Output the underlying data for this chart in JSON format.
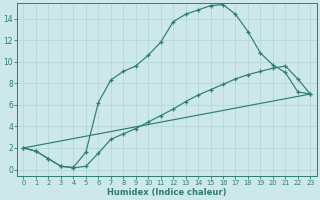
{
  "xlabel": "Humidex (Indice chaleur)",
  "bg_color": "#cce8e8",
  "line_color": "#2e7d6e",
  "grid_color": "#b0d4d4",
  "xlim": [
    -0.5,
    23.5
  ],
  "ylim": [
    -0.6,
    15.4
  ],
  "yticks": [
    0,
    2,
    4,
    6,
    8,
    10,
    12,
    14
  ],
  "xticks": [
    0,
    1,
    2,
    3,
    4,
    5,
    6,
    7,
    8,
    9,
    10,
    11,
    12,
    13,
    14,
    15,
    16,
    17,
    18,
    19,
    20,
    21,
    22,
    23
  ],
  "curve1_x": [
    0,
    1,
    2,
    3,
    4,
    5,
    6,
    7,
    8,
    9,
    10,
    11,
    12,
    13,
    14,
    15,
    16,
    17,
    18,
    19,
    20,
    21,
    22,
    23
  ],
  "curve1_y": [
    2.0,
    1.7,
    1.0,
    0.3,
    0.2,
    1.6,
    6.2,
    8.3,
    9.1,
    9.6,
    10.6,
    11.8,
    13.7,
    14.4,
    14.8,
    15.2,
    15.3,
    14.4,
    12.8,
    10.8,
    9.7,
    9.0,
    7.2,
    7.0
  ],
  "curve2_x": [
    0,
    1,
    2,
    3,
    4,
    5,
    6,
    7,
    8,
    9,
    10,
    11,
    12,
    13,
    14,
    15,
    16,
    17,
    18,
    19,
    20,
    21,
    22,
    23
  ],
  "curve2_y": [
    2.0,
    1.7,
    1.0,
    0.3,
    0.15,
    0.3,
    1.5,
    2.8,
    3.3,
    3.8,
    4.4,
    5.0,
    5.6,
    6.3,
    6.9,
    7.4,
    7.9,
    8.4,
    8.8,
    9.1,
    9.4,
    9.6,
    8.4,
    7.0
  ],
  "curve3_x": [
    0,
    23
  ],
  "curve3_y": [
    2.0,
    7.0
  ]
}
